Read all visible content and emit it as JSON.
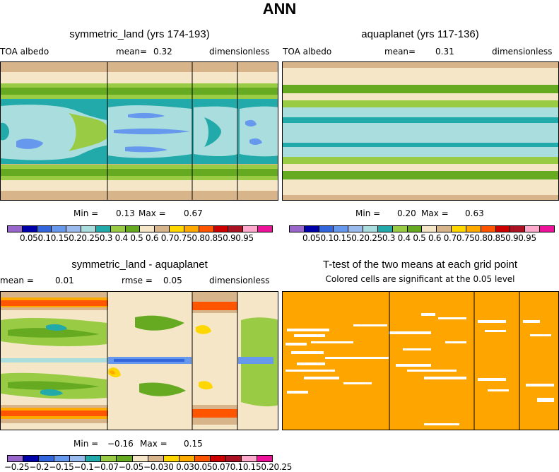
{
  "main_title": "ANN",
  "panels": {
    "p1": {
      "title": "symmetric_land (yrs 174-193)",
      "left_label": "TOA albedo",
      "mean_label": "mean=",
      "mean_value": "0.32",
      "units": "dimensionless",
      "min_label": "Min =",
      "min_value": "0.13",
      "max_label": "Max =",
      "max_value": "0.67",
      "cbar_ticks": "0.050.10.150.20.250.3 0.4 0.5 0.6 0.70.750.80.850.90.95"
    },
    "p2": {
      "title": "aquaplanet (yrs 117-136)",
      "left_label": "TOA albedo",
      "mean_label": "mean=",
      "mean_value": "0.31",
      "units": "dimensionless",
      "min_label": "Min =",
      "min_value": "0.20",
      "max_label": "Max =",
      "max_value": "0.63",
      "cbar_ticks": "0.050.10.150.20.250.3 0.4 0.5 0.6 0.70.750.80.850.90.95"
    },
    "p3": {
      "title": "symmetric_land - aquaplanet",
      "mean_label": "mean =",
      "mean_value": "0.01",
      "rmse_label": "rmse =",
      "rmse_value": "0.05",
      "units": "dimensionless",
      "min_label": "Min =",
      "min_value": "−0.16",
      "max_label": "Max =",
      "max_value": "0.15",
      "cbar_ticks": "−0.25−0.2−0.15−0.1−0.07−0.05−0.030 0.030.050.070.10.150.20.25"
    },
    "p4": {
      "title": "T-test of the two means at each grid point",
      "subtitle": "Colored cells are significant at the 0.05 level"
    }
  },
  "colors": {
    "abs_scale": [
      "#9966cc",
      "#0000a8",
      "#3366dd",
      "#6699ee",
      "#99bbee",
      "#aadddd",
      "#22aaaa",
      "#99cc44",
      "#66aa22",
      "#f5e6c8",
      "#d8b48a",
      "#ffd700",
      "#ffaa00",
      "#ff5500",
      "#cc0000",
      "#aa1122",
      "#ffaacc",
      "#ee1199"
    ],
    "diff_scale": [
      "#9966cc",
      "#0000a8",
      "#3366dd",
      "#6699ee",
      "#99bbee",
      "#22aaaa",
      "#99cc44",
      "#66aa22",
      "#f5e6c8",
      "#d8b48a",
      "#ffd700",
      "#ffaa00",
      "#ff5500",
      "#cc0000",
      "#aa1122",
      "#ffaacc",
      "#ee1199"
    ],
    "ttest_fill": "#ffa500"
  }
}
